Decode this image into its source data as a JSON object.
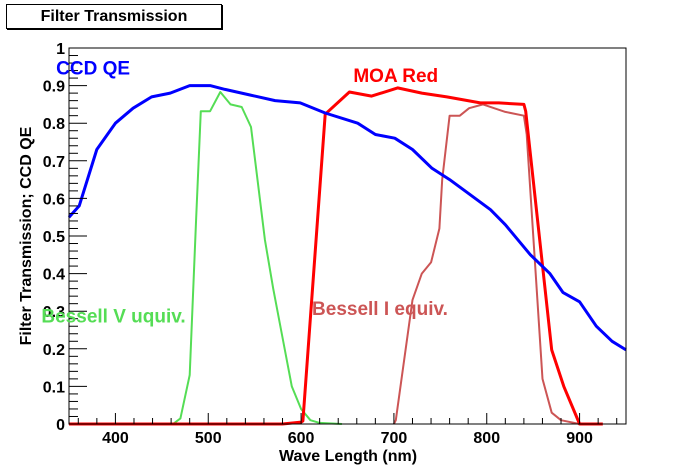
{
  "chart_data": {
    "type": "line",
    "title": "Filter Transmission",
    "xlabel": "Wave Length (nm)",
    "ylabel": "Filter Transmission; CCD QE",
    "xlim": [
      350,
      950
    ],
    "ylim": [
      0,
      1
    ],
    "grid": false,
    "xticks": [
      400,
      500,
      600,
      700,
      800,
      900
    ],
    "xtick_labels": [
      "400",
      "500",
      "600",
      "700",
      "800",
      "900"
    ],
    "yticks": [
      0,
      0.1,
      0.2,
      0.3,
      0.4,
      0.5,
      0.6,
      0.7,
      0.8,
      0.9,
      1
    ],
    "ytick_labels": [
      "0",
      "0.1",
      "0.2",
      "0.3",
      "0.4",
      "0.5",
      "0.6",
      "0.7",
      "0.8",
      "0.9",
      "1"
    ],
    "series": [
      {
        "name": "CCD QE",
        "label": "CCD QE",
        "color": "#0000ff",
        "x": [
          350,
          361,
          380,
          400,
          419,
          439,
          459,
          480,
          502,
          518,
          545,
          572,
          599,
          626,
          661,
          680,
          701,
          720,
          741,
          760,
          782,
          804,
          820,
          847,
          868,
          882,
          900,
          918,
          935,
          950
        ],
        "y": [
          0.55,
          0.58,
          0.73,
          0.8,
          0.84,
          0.87,
          0.88,
          0.9,
          0.9,
          0.89,
          0.875,
          0.86,
          0.854,
          0.827,
          0.8,
          0.77,
          0.76,
          0.73,
          0.68,
          0.65,
          0.61,
          0.57,
          0.53,
          0.45,
          0.4,
          0.35,
          0.325,
          0.26,
          0.22,
          0.197
        ]
      },
      {
        "name": "MOA Red",
        "label": "MOA Red",
        "color": "#ff0000",
        "x": [
          350,
          580,
          600,
          602,
          626,
          652,
          676,
          704,
          730,
          757,
          793,
          813,
          840,
          842,
          870,
          883,
          900,
          925
        ],
        "y": [
          0,
          0,
          0.005,
          0.008,
          0.824,
          0.883,
          0.872,
          0.894,
          0.88,
          0.87,
          0.854,
          0.854,
          0.85,
          0.832,
          0.197,
          0.1,
          0.0,
          0.0
        ]
      },
      {
        "name": "Bessell V equiv.",
        "label": "Bessell V uquiv.",
        "color": "#55dd55",
        "x": [
          451,
          462,
          470,
          480,
          487,
          492,
          502,
          513,
          524,
          536,
          546,
          561,
          570,
          580,
          590,
          600,
          610,
          620,
          644
        ],
        "y": [
          0,
          0,
          0.015,
          0.13,
          0.55,
          0.832,
          0.832,
          0.883,
          0.85,
          0.843,
          0.79,
          0.49,
          0.36,
          0.23,
          0.1,
          0.04,
          0.01,
          0.003,
          0
        ]
      },
      {
        "name": "Bessell I equiv.",
        "label": "Bessell I equiv.",
        "color": "#cc5555",
        "x": [
          700,
          702,
          720,
          730,
          740,
          749,
          752,
          760,
          771,
          781,
          796,
          820,
          840,
          843,
          860,
          870,
          880,
          900
        ],
        "y": [
          0,
          0.01,
          0.33,
          0.4,
          0.43,
          0.52,
          0.65,
          0.82,
          0.82,
          0.84,
          0.85,
          0.83,
          0.82,
          0.77,
          0.12,
          0.03,
          0.01,
          0
        ]
      }
    ],
    "annotations": [
      {
        "text": "CCD QE",
        "x": 376,
        "y": 0.93,
        "color": "#0000ff"
      },
      {
        "text": "MOA Red",
        "x": 702,
        "y": 0.91,
        "color": "#ff0000"
      },
      {
        "text": "Bessell V uquiv.",
        "x": 398,
        "y": 0.27,
        "color": "#55dd55"
      },
      {
        "text": "Bessell I equiv.",
        "x": 685,
        "y": 0.29,
        "color": "#cc5555"
      }
    ]
  }
}
